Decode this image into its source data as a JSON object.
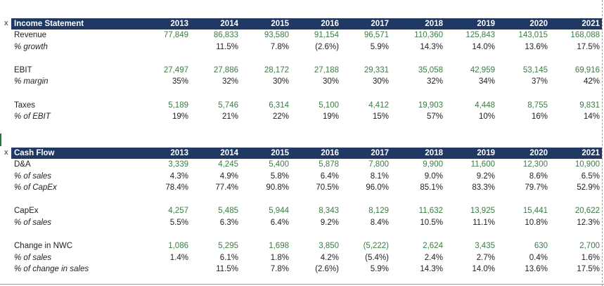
{
  "years": [
    "2013",
    "2014",
    "2015",
    "2016",
    "2017",
    "2018",
    "2019",
    "2020",
    "2021"
  ],
  "income": {
    "marker": "x",
    "title": "Income Statement",
    "rows": [
      {
        "label": "Revenue",
        "italic": false,
        "color": "g",
        "values": [
          "77,849",
          "86,833",
          "93,580",
          "91,154",
          "96,571",
          "110,360",
          "125,843",
          "143,015",
          "168,088"
        ]
      },
      {
        "label": "% growth",
        "italic": true,
        "color": "k",
        "values": [
          "",
          "11.5%",
          "7.8%",
          "(2.6%)",
          "5.9%",
          "14.3%",
          "14.0%",
          "13.6%",
          "17.5%"
        ]
      },
      {
        "label": "",
        "italic": false,
        "color": "k",
        "values": [
          "",
          "",
          "",
          "",
          "",
          "",
          "",
          "",
          ""
        ]
      },
      {
        "label": "EBIT",
        "italic": false,
        "color": "g",
        "values": [
          "27,497",
          "27,886",
          "28,172",
          "27,188",
          "29,331",
          "35,058",
          "42,959",
          "53,145",
          "69,916"
        ]
      },
      {
        "label": "% margin",
        "italic": true,
        "color": "k",
        "values": [
          "35%",
          "32%",
          "30%",
          "30%",
          "30%",
          "32%",
          "34%",
          "37%",
          "42%"
        ]
      },
      {
        "label": "",
        "italic": false,
        "color": "k",
        "values": [
          "",
          "",
          "",
          "",
          "",
          "",
          "",
          "",
          ""
        ]
      },
      {
        "label": "Taxes",
        "italic": false,
        "color": "g",
        "values": [
          "5,189",
          "5,746",
          "6,314",
          "5,100",
          "4,412",
          "19,903",
          "4,448",
          "8,755",
          "9,831"
        ]
      },
      {
        "label": "% of EBIT",
        "italic": true,
        "color": "k",
        "values": [
          "19%",
          "21%",
          "22%",
          "19%",
          "15%",
          "57%",
          "10%",
          "16%",
          "14%"
        ]
      }
    ]
  },
  "cashflow": {
    "marker": "x",
    "title": "Cash Flow",
    "rows": [
      {
        "label": "D&A",
        "italic": false,
        "color": "g",
        "values": [
          "3,339",
          "4,245",
          "5,400",
          "5,878",
          "7,800",
          "9,900",
          "11,600",
          "12,300",
          "10,900"
        ]
      },
      {
        "label": "% of sales",
        "italic": true,
        "color": "k",
        "values": [
          "4.3%",
          "4.9%",
          "5.8%",
          "6.4%",
          "8.1%",
          "9.0%",
          "9.2%",
          "8.6%",
          "6.5%"
        ]
      },
      {
        "label": "% of CapEx",
        "italic": true,
        "color": "k",
        "values": [
          "78.4%",
          "77.4%",
          "90.8%",
          "70.5%",
          "96.0%",
          "85.1%",
          "83.3%",
          "79.7%",
          "52.9%"
        ]
      },
      {
        "label": "",
        "italic": false,
        "color": "k",
        "values": [
          "",
          "",
          "",
          "",
          "",
          "",
          "",
          "",
          ""
        ]
      },
      {
        "label": "CapEx",
        "italic": false,
        "color": "g",
        "values": [
          "4,257",
          "5,485",
          "5,944",
          "8,343",
          "8,129",
          "11,632",
          "13,925",
          "15,441",
          "20,622"
        ]
      },
      {
        "label": "% of sales",
        "italic": true,
        "color": "k",
        "values": [
          "5.5%",
          "6.3%",
          "6.4%",
          "9.2%",
          "8.4%",
          "10.5%",
          "11.1%",
          "10.8%",
          "12.3%"
        ]
      },
      {
        "label": "",
        "italic": false,
        "color": "k",
        "values": [
          "",
          "",
          "",
          "",
          "",
          "",
          "",
          "",
          ""
        ]
      },
      {
        "label": "Change in NWC",
        "italic": false,
        "color": "g",
        "values": [
          "1,086",
          "5,295",
          "1,698",
          "3,850",
          "(5,222)",
          "2,624",
          "3,435",
          "630",
          "2,700"
        ]
      },
      {
        "label": "% of sales",
        "italic": true,
        "color": "k",
        "values": [
          "1.4%",
          "6.1%",
          "1.8%",
          "4.2%",
          "(5.4%)",
          "2.4%",
          "2.7%",
          "0.4%",
          "1.6%"
        ]
      },
      {
        "label": "% of change in sales",
        "italic": true,
        "color": "k",
        "values": [
          "",
          "11.5%",
          "7.8%",
          "(2.6%)",
          "5.9%",
          "14.3%",
          "14.0%",
          "13.6%",
          "17.5%"
        ]
      }
    ]
  }
}
